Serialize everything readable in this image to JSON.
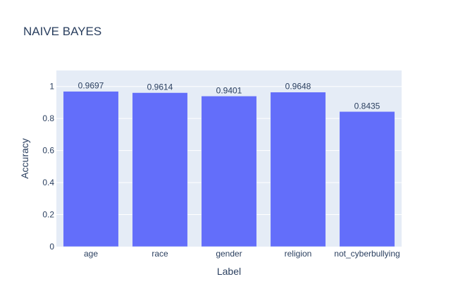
{
  "chart_data": {
    "type": "bar",
    "title": "NAIVE BAYES",
    "xlabel": "Label",
    "ylabel": "Accuracy",
    "categories": [
      "age",
      "race",
      "gender",
      "religion",
      "not_cyberbullying"
    ],
    "values": [
      0.9697,
      0.9614,
      0.9401,
      0.9648,
      0.8435
    ],
    "data_labels": [
      "0.9697",
      "0.9614",
      "0.9401",
      "0.9648",
      "0.8435"
    ],
    "ylim": [
      0,
      1.1
    ],
    "yticks": [
      0,
      0.2,
      0.4,
      0.6,
      0.8,
      1
    ],
    "ytick_labels": [
      "0",
      "0.2",
      "0.4",
      "0.6",
      "0.8",
      "1"
    ],
    "grid": true,
    "legend": "none",
    "colors": {
      "bar": "#636efa",
      "plot_background": "#e5ecf6",
      "grid": "#ffffff",
      "text": "#2a3f5f"
    }
  }
}
